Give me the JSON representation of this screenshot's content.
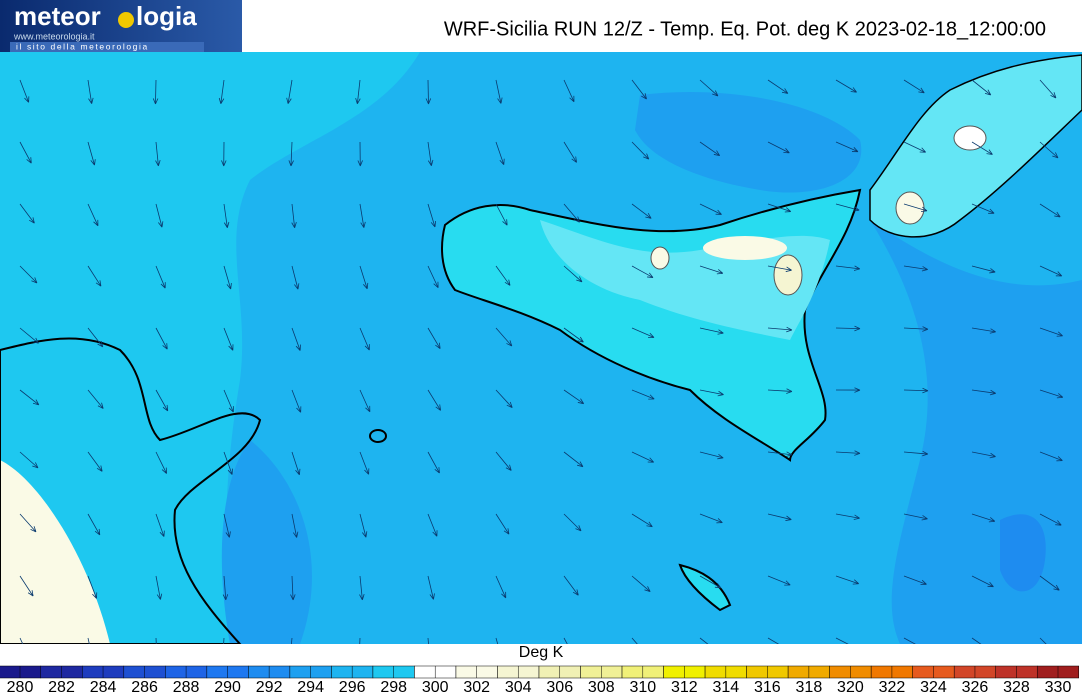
{
  "logo": {
    "name_start": "meteor",
    "name_end": "logia",
    "url": "www.meteorologia.it",
    "tagline": "il sito della meteorologia"
  },
  "title": "WRF-Sicilia RUN 12/Z - Temp. Eq. Pot. deg K 2023-02-18_12:00:00",
  "colorbar": {
    "label": "Deg K",
    "ticks": [
      280,
      282,
      284,
      286,
      288,
      290,
      292,
      294,
      296,
      298,
      300,
      302,
      304,
      306,
      308,
      310,
      312,
      314,
      316,
      318,
      320,
      322,
      324,
      326,
      328,
      330
    ],
    "colors": [
      "#1a1a8c",
      "#1e28a0",
      "#1e3cbe",
      "#1e50d2",
      "#1e64e6",
      "#1e78f0",
      "#1e8cf0",
      "#1ea0f0",
      "#1eb4f0",
      "#1ec8f0",
      "#ffffff",
      "#fafae6",
      "#f5f5d2",
      "#f0f0b4",
      "#f0f096",
      "#f0f078",
      "#f0f000",
      "#f0dc00",
      "#f0c800",
      "#f0aa00",
      "#f08c00",
      "#f07800",
      "#e65a1e",
      "#d24628",
      "#be3228",
      "#a01e1e"
    ]
  }
}
